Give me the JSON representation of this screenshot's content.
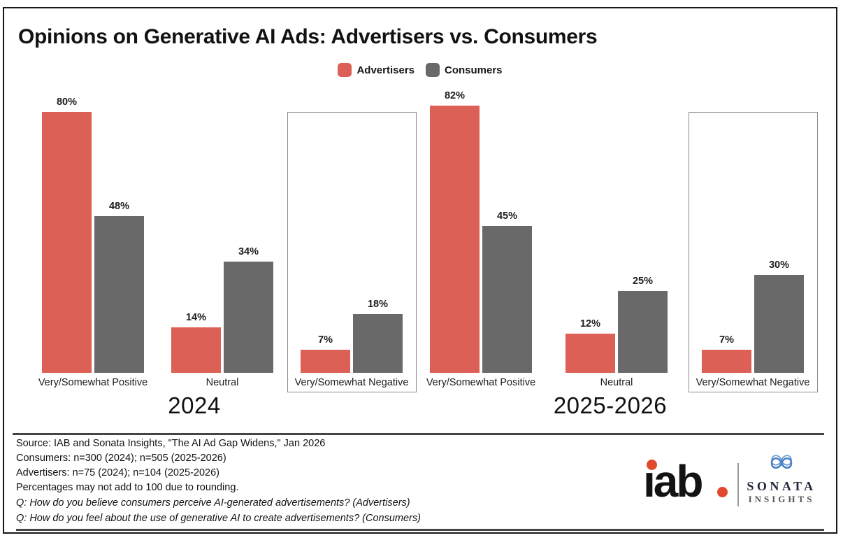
{
  "title": "Opinions on Generative AI Ads: Advertisers vs. Consumers",
  "legend": {
    "items": [
      {
        "label": "Advertisers",
        "color": "#DC6055"
      },
      {
        "label": "Consumers",
        "color": "#696969"
      }
    ]
  },
  "chart_data": {
    "type": "bar",
    "unit": "%",
    "ylim": [
      0,
      100
    ],
    "grid": false,
    "legend_position": "top-center",
    "series": [
      "Advertisers",
      "Consumers"
    ],
    "colors": {
      "Advertisers": "#DC6055",
      "Consumers": "#696969"
    },
    "groups": [
      {
        "period": "2024",
        "categories": [
          "Very/Somewhat Positive",
          "Neutral",
          "Very/Somewhat Negative"
        ],
        "values": {
          "Advertisers": [
            80,
            14,
            7
          ],
          "Consumers": [
            48,
            34,
            18
          ]
        },
        "highlighted_category": "Very/Somewhat Negative"
      },
      {
        "period": "2025-2026",
        "categories": [
          "Very/Somewhat Positive",
          "Neutral",
          "Very/Somewhat Negative"
        ],
        "values": {
          "Advertisers": [
            82,
            12,
            7
          ],
          "Consumers": [
            45,
            25,
            30
          ]
        },
        "highlighted_category": "Very/Somewhat Negative"
      }
    ]
  },
  "footer": {
    "notes": [
      "Source: IAB and Sonata Insights, \"The AI Ad Gap Widens,\" Jan 2026",
      "Consumers: n=300 (2024); n=505 (2025-2026)",
      "Advertisers: n=75 (2024); n=104 (2025-2026)",
      "Percentages may not add to 100 due to rounding.",
      "Q: How do you believe consumers perceive AI-generated advertisements? (Advertisers)",
      "Q: How do you feel about the use of generative AI to create advertisements? (Consumers)"
    ]
  },
  "logos": {
    "iab": {
      "text": "iab.",
      "accent": "#E1492F"
    },
    "sonata": {
      "line1": "SONATA",
      "line2": "INSIGHTS",
      "symbol_color": "#4B82C3"
    }
  }
}
